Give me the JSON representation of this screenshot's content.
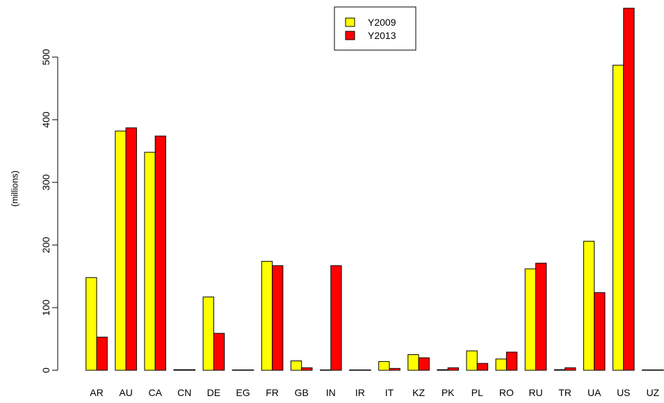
{
  "chart_data": {
    "type": "bar",
    "title": "",
    "xlabel": "",
    "ylabel": "(millions)",
    "ylim": [
      0,
      580
    ],
    "yticks": [
      0,
      100,
      200,
      300,
      400,
      500
    ],
    "grid": false,
    "legend_position": "top-center",
    "categories": [
      "AR",
      "AU",
      "CA",
      "CN",
      "DE",
      "EG",
      "FR",
      "GB",
      "IN",
      "IR",
      "IT",
      "KZ",
      "PK",
      "PL",
      "RO",
      "RU",
      "TR",
      "UA",
      "US",
      "UZ"
    ],
    "series": [
      {
        "name": "Y2009",
        "color": "#ffff00",
        "values": [
          148,
          382,
          348,
          1,
          117,
          0.5,
          174,
          15,
          0.5,
          0.5,
          14,
          25,
          1,
          31,
          18,
          162,
          1,
          206,
          487,
          0.5
        ]
      },
      {
        "name": "Y2013",
        "color": "#ff0000",
        "values": [
          53,
          387,
          374,
          1,
          59,
          0.5,
          167,
          4,
          167,
          0.5,
          3,
          20,
          4,
          11,
          29,
          171,
          4,
          124,
          578,
          0.5
        ]
      }
    ]
  }
}
